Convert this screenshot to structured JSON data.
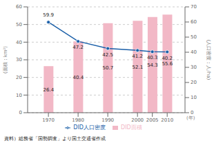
{
  "chart_data": {
    "type": "bar",
    "x": [
      1970,
      1980,
      1990,
      2000,
      2005,
      2010
    ],
    "xlim": [
      1963,
      2016
    ],
    "xticks": [
      1970,
      1980,
      1990,
      2000,
      2005,
      2010
    ],
    "xlabel": "(年)",
    "ylabel": "(面積：km²)",
    "y2label": "(人口密度：人/ha)",
    "ylim": [
      0,
      60
    ],
    "yticks": [
      0,
      10,
      20,
      30,
      40,
      50,
      60
    ],
    "y2lim": [
      0,
      70
    ],
    "y2ticks": [
      0,
      10,
      20,
      30,
      40,
      50,
      60,
      70
    ],
    "grid": true,
    "legend": "bottom",
    "data_labels": true,
    "annotations": [
      "資料）総務省「国勢調査」より国土交通省作成"
    ],
    "series": [
      {
        "name": "DID面積",
        "type": "bar",
        "color": "#f2b8c6",
        "values": [
          26.4,
          40.4,
          50.7,
          52.1,
          54.3,
          55.6
        ]
      },
      {
        "name": "DID人口密度",
        "type": "line",
        "axis": "y2",
        "color": "#1a5fa8",
        "marker": "circle",
        "values": [
          59.9,
          47.2,
          42.5,
          41.2,
          40.3,
          40.2
        ]
      }
    ]
  }
}
